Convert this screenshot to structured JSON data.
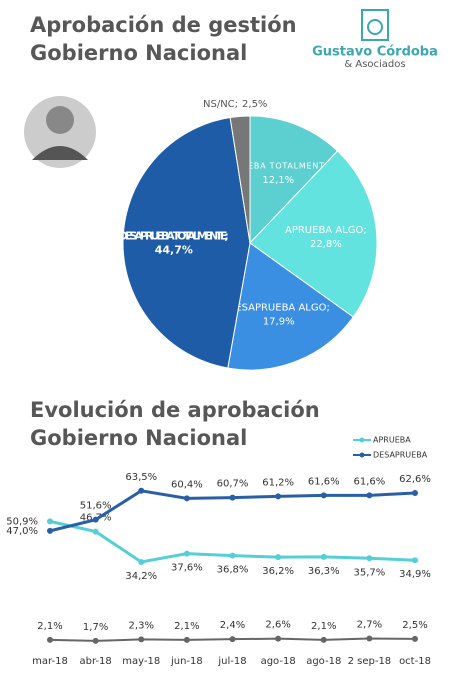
{
  "header": {
    "logo_name": "Gustavo Córdoba",
    "logo_sub": "& Asociados"
  },
  "chart_data": [
    {
      "type": "pie",
      "title": [
        "Aprobación de gestión",
        "Gobierno Nacional"
      ],
      "categories": [
        "APRUEBA TOTALMENTE;",
        "APRUEBA ALGO;",
        "DESAPRUEBA ALGO;",
        "DESAPRUEBA TOTALMENTE;",
        "NS/NC;"
      ],
      "values": [
        12.1,
        22.8,
        17.9,
        44.7,
        2.5
      ],
      "value_labels": [
        "12,1%",
        "22,8%",
        "17,9%",
        "44,7%",
        "2,5%"
      ],
      "colors": [
        "#5ccfd0",
        "#62e3df",
        "#3b8fe3",
        "#1f5ca8",
        "#777777"
      ]
    },
    {
      "type": "line",
      "title": [
        "Evolución de aprobación",
        "Gobierno Nacional"
      ],
      "categories": [
        "mar-18",
        "abr-18",
        "may-18",
        "jun-18",
        "jul-18",
        "ago-18",
        "ago-18",
        "2 sep-18",
        "oct-18"
      ],
      "ylim": [
        0,
        70
      ],
      "series": [
        {
          "name": "APRUEBA",
          "color": "#55cfd6",
          "values": [
            50.9,
            46.7,
            34.2,
            37.6,
            36.8,
            36.2,
            36.3,
            35.7,
            34.9
          ],
          "value_labels": [
            "50,9%",
            "46,7%",
            "34,2%",
            "37,6%",
            "36,8%",
            "36,2%",
            "36,3%",
            "35,7%",
            "34,9%"
          ]
        },
        {
          "name": "DESAPRUEBA",
          "color": "#2a5fa8",
          "values": [
            47.0,
            51.6,
            63.5,
            60.4,
            60.7,
            61.2,
            61.6,
            61.6,
            62.6
          ],
          "value_labels": [
            "47,0%",
            "51,6%",
            "63,5%",
            "60,4%",
            "60,7%",
            "61,2%",
            "61,6%",
            "61,6%",
            "62,6%"
          ]
        },
        {
          "color": "#666666",
          "values": [
            2.1,
            1.7,
            2.3,
            2.1,
            2.4,
            2.6,
            2.1,
            2.7,
            2.5
          ],
          "value_labels": [
            "2,1%",
            "1,7%",
            "2,3%",
            "2,1%",
            "2,4%",
            "2,6%",
            "2,1%",
            "2,7%",
            "2,5%"
          ]
        }
      ]
    }
  ]
}
